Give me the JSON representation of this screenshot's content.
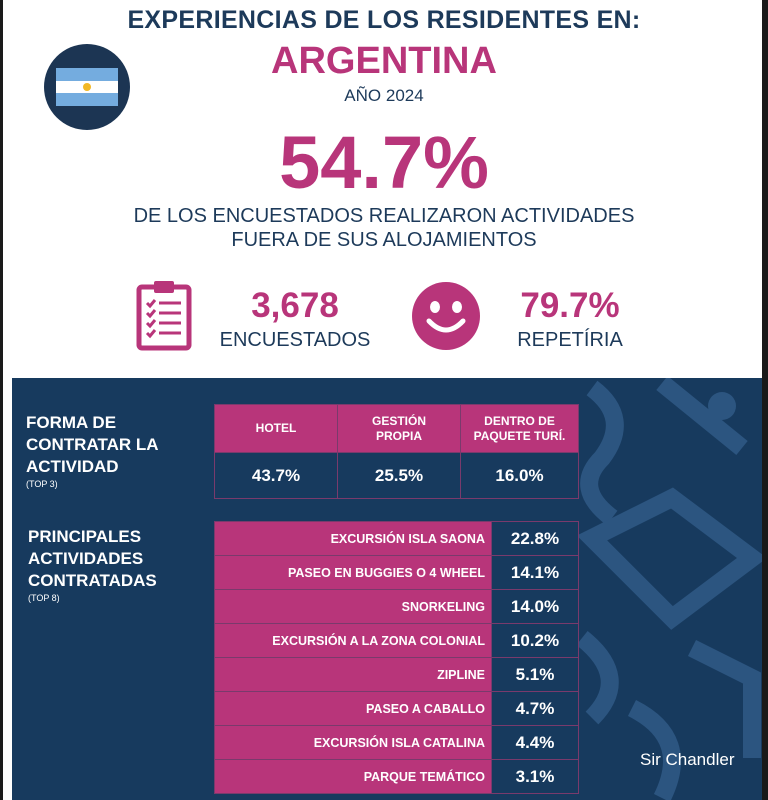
{
  "header": {
    "title": "EXPERIENCIAS DE LOS RESIDENTES EN:",
    "country": "ARGENTINA",
    "year": "AÑO 2024"
  },
  "flag": {
    "name": "argentina-flag",
    "colors": [
      "#74acdf",
      "#ffffff",
      "#74acdf"
    ],
    "sun_color": "#f2b825"
  },
  "highlight": {
    "value": "54.7%",
    "description_line1": "DE LOS ENCUESTADOS REALIZARON ACTIVIDADES",
    "description_line2": "FUERA DE SUS ALOJAMIENTOS"
  },
  "stats": [
    {
      "icon": "clipboard-checklist-icon",
      "value": "3,678",
      "label": "ENCUESTADOS"
    },
    {
      "icon": "smiley-face-icon",
      "value": "79.7%",
      "label": "REPETÍRIA"
    }
  ],
  "contract": {
    "title_lines": [
      "FORMA DE",
      "CONTRATAR LA",
      "ACTIVIDAD"
    ],
    "subtitle": "(TOP 3)",
    "columns": [
      {
        "header_lines": [
          "HOTEL"
        ],
        "value": "43.7%"
      },
      {
        "header_lines": [
          "GESTIÓN",
          "PROPIA"
        ],
        "value": "25.5%"
      },
      {
        "header_lines": [
          "DENTRO DE",
          "PAQUETE TURÍ."
        ],
        "value": "16.0%"
      }
    ]
  },
  "activities": {
    "title_lines": [
      "PRINCIPALES",
      "ACTIVIDADES",
      "CONTRATADAS"
    ],
    "subtitle": "(TOP 8)",
    "rows": [
      {
        "name": "EXCURSIÓN ISLA SAONA",
        "value": "22.8%"
      },
      {
        "name": "PASEO EN BUGGIES O 4 WHEEL",
        "value": "14.1%"
      },
      {
        "name": "SNORKELING",
        "value": "14.0%"
      },
      {
        "name": "EXCURSIÓN A LA ZONA COLONIAL",
        "value": "10.2%"
      },
      {
        "name": "ZIPLINE",
        "value": "5.1%"
      },
      {
        "name": "PASEO A CABALLO",
        "value": "4.7%"
      },
      {
        "name": "EXCURSIÓN ISLA CATALINA",
        "value": "4.4%"
      },
      {
        "name": "PARQUE TEMÁTICO",
        "value": "3.1%"
      }
    ]
  },
  "watermark": "Sir Chandler",
  "colors": {
    "navy": "#173a5e",
    "magenta": "#b8357a",
    "text_navy": "#1d3a5a"
  }
}
